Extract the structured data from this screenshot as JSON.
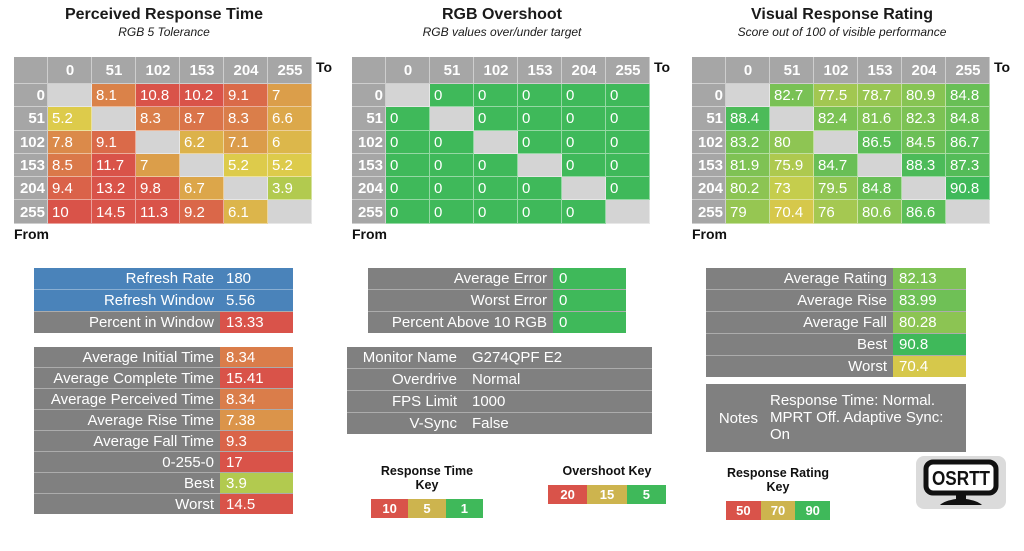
{
  "chart_data": [
    {
      "type": "heatmap",
      "title": "Perceived Response Time",
      "subtitle": "RGB 5 Tolerance",
      "x_axis_label": "To",
      "y_axis_label": "From",
      "x_labels": [
        "0",
        "51",
        "102",
        "153",
        "204",
        "255"
      ],
      "y_labels": [
        "0",
        "51",
        "102",
        "153",
        "204",
        "255"
      ],
      "matrix": [
        [
          null,
          8.1,
          10.8,
          10.2,
          9.1,
          7
        ],
        [
          5.2,
          null,
          8.3,
          8.7,
          8.3,
          6.6
        ],
        [
          7.8,
          9.1,
          null,
          6.2,
          7.1,
          6
        ],
        [
          8.5,
          11.7,
          7,
          null,
          5.2,
          5.2
        ],
        [
          9.4,
          13.2,
          9.8,
          6.7,
          null,
          3.9
        ],
        [
          10,
          14.5,
          11.3,
          9.2,
          6.1,
          null
        ]
      ],
      "cell_colors": [
        [
          "",
          "#DA8249",
          "#D95349",
          "#D95349",
          "#DA6A49",
          "#DB9E4A"
        ],
        [
          "#DDCB4B",
          "",
          "#DA7E4A",
          "#DA744A",
          "#DA7E4A",
          "#DCA84A"
        ],
        [
          "#DB8A4A",
          "#DA6A49",
          "",
          "#DCB24B",
          "#DB9C4A",
          "#DCB74B"
        ],
        [
          "#DA7949",
          "#D95349",
          "#DB9E4A",
          "",
          "#DDCB4B",
          "#DDCB4B"
        ],
        [
          "#DA6249",
          "#D95349",
          "#D95849",
          "#DCA64A",
          "",
          "#B2CA4F"
        ],
        [
          "#D95349",
          "#D95349",
          "#D95349",
          "#DA6749",
          "#DCB54B",
          ""
        ]
      ]
    },
    {
      "type": "heatmap",
      "title": "RGB Overshoot",
      "subtitle": "RGB values over/under target",
      "x_axis_label": "To",
      "y_axis_label": "From",
      "x_labels": [
        "0",
        "51",
        "102",
        "153",
        "204",
        "255"
      ],
      "y_labels": [
        "0",
        "51",
        "102",
        "153",
        "204",
        "255"
      ],
      "matrix": [
        [
          null,
          0,
          0,
          0,
          0,
          0
        ],
        [
          0,
          null,
          0,
          0,
          0,
          0
        ],
        [
          0,
          0,
          null,
          0,
          0,
          0
        ],
        [
          0,
          0,
          0,
          null,
          0,
          0
        ],
        [
          0,
          0,
          0,
          0,
          null,
          0
        ],
        [
          0,
          0,
          0,
          0,
          0,
          null
        ]
      ],
      "cell_colors": [
        [
          "",
          "#3FB95A",
          "#3FB95A",
          "#3FB95A",
          "#3FB95A",
          "#3FB95A"
        ],
        [
          "#3FB95A",
          "",
          "#3FB95A",
          "#3FB95A",
          "#3FB95A",
          "#3FB95A"
        ],
        [
          "#3FB95A",
          "#3FB95A",
          "",
          "#3FB95A",
          "#3FB95A",
          "#3FB95A"
        ],
        [
          "#3FB95A",
          "#3FB95A",
          "#3FB95A",
          "",
          "#3FB95A",
          "#3FB95A"
        ],
        [
          "#3FB95A",
          "#3FB95A",
          "#3FB95A",
          "#3FB95A",
          "",
          "#3FB95A"
        ],
        [
          "#3FB95A",
          "#3FB95A",
          "#3FB95A",
          "#3FB95A",
          "#3FB95A",
          ""
        ]
      ]
    },
    {
      "type": "heatmap",
      "title": "Visual Response Rating",
      "subtitle": "Score out of 100 of visible performance",
      "x_axis_label": "To",
      "y_axis_label": "From",
      "x_labels": [
        "0",
        "51",
        "102",
        "153",
        "204",
        "255"
      ],
      "y_labels": [
        "0",
        "51",
        "102",
        "153",
        "204",
        "255"
      ],
      "matrix": [
        [
          null,
          82.7,
          77.5,
          78.7,
          80.9,
          84.8
        ],
        [
          88.4,
          null,
          82.4,
          81.6,
          82.3,
          84.8
        ],
        [
          83.2,
          80,
          null,
          86.5,
          84.5,
          86.7
        ],
        [
          81.9,
          75.9,
          84.7,
          null,
          88.3,
          87.3
        ],
        [
          80.2,
          73,
          79.5,
          84.8,
          null,
          90.8
        ],
        [
          79,
          70.4,
          76,
          80.6,
          86.6,
          null
        ]
      ],
      "cell_colors": [
        [
          "",
          "#79C155",
          "#A2C751",
          "#98C652",
          "#87C453",
          "#68BF56"
        ],
        [
          "#4CBB59",
          "",
          "#7BC254",
          "#81C354",
          "#7CC254",
          "#68BF56"
        ],
        [
          "#75C155",
          "#8EC553",
          "",
          "#5BBD57",
          "#6BBF56",
          "#59BD58"
        ],
        [
          "#7FC254",
          "#AEC94F",
          "#69BF56",
          "",
          "#4CBB59",
          "#54BC58"
        ],
        [
          "#8CC453",
          "#C5CD4D",
          "#92C552",
          "#68BF56",
          "",
          "#3FB95A"
        ],
        [
          "#96C652",
          "#D6C84B",
          "#A5C851",
          "#89C453",
          "#5ABD57",
          ""
        ]
      ]
    }
  ],
  "stats": {
    "tables": [
      {
        "id": "refresh-info",
        "rows": [
          {
            "label": "Refresh Rate",
            "value": "180",
            "row_bg": "#4A83BA"
          },
          {
            "label": "Refresh Window",
            "value": "5.56",
            "row_bg": "#4A83BA"
          },
          {
            "label": "Percent in Window",
            "value": "13.33",
            "value_bg": "#D9534A"
          }
        ]
      },
      {
        "id": "response-times",
        "rows": [
          {
            "label": "Average Initial Time",
            "value": "8.34",
            "value_bg": "#DA7D4A"
          },
          {
            "label": "Average Complete Time",
            "value": "15.41",
            "value_bg": "#D95349"
          },
          {
            "label": "Average Perceived Time",
            "value": "8.34",
            "value_bg": "#DA7D4A"
          },
          {
            "label": "Average Rise Time",
            "value": "7.38",
            "value_bg": "#DB944A"
          },
          {
            "label": "Average Fall Time",
            "value": "9.3",
            "value_bg": "#DA6449"
          },
          {
            "label": "0-255-0",
            "value": "17",
            "value_bg": "#D95349"
          },
          {
            "label": "Best",
            "value": "3.9",
            "value_bg": "#B2CA4F"
          },
          {
            "label": "Worst",
            "value": "14.5",
            "value_bg": "#D95349"
          }
        ]
      },
      {
        "id": "overshoot-stats",
        "rows": [
          {
            "label": "Average Error",
            "value": "0",
            "value_bg": "#3FB95A"
          },
          {
            "label": "Worst Error",
            "value": "0",
            "value_bg": "#3FB95A"
          },
          {
            "label": "Percent Above 10 RGB",
            "value": "0",
            "value_bg": "#3FB95A"
          }
        ]
      },
      {
        "id": "monitor-info",
        "rows": [
          {
            "label": "Monitor Name",
            "value": "G274QPF E2"
          },
          {
            "label": "Overdrive",
            "value": "Normal"
          },
          {
            "label": "FPS Limit",
            "value": "1000"
          },
          {
            "label": "V-Sync",
            "value": "False"
          }
        ]
      },
      {
        "id": "rating-stats",
        "rows": [
          {
            "label": "Average Rating",
            "value": "82.13",
            "value_bg": "#7DC254"
          },
          {
            "label": "Average Rise",
            "value": "83.99",
            "value_bg": "#6FC056"
          },
          {
            "label": "Average Fall",
            "value": "80.28",
            "value_bg": "#8CC453"
          },
          {
            "label": "Best",
            "value": "90.8",
            "value_bg": "#3FB95A"
          },
          {
            "label": "Worst",
            "value": "70.4",
            "value_bg": "#D6C84B"
          }
        ]
      },
      {
        "id": "notes",
        "rows": [
          {
            "label": "Notes",
            "value": "Response Time: Normal.\nMPRT Off. Adaptive Sync:\nOn"
          }
        ]
      }
    ]
  },
  "keys": [
    {
      "title": "Response Time Key",
      "cells": [
        {
          "value": "10",
          "color": "#D9534A"
        },
        {
          "value": "5",
          "color": "#CDB44E"
        },
        {
          "value": "1",
          "color": "#3FB95A"
        }
      ]
    },
    {
      "title": "Overshoot Key",
      "cells": [
        {
          "value": "20",
          "color": "#D9534A"
        },
        {
          "value": "15",
          "color": "#CDB44E"
        },
        {
          "value": "5",
          "color": "#3FB95A"
        }
      ]
    },
    {
      "title": "Response Rating Key",
      "cells": [
        {
          "value": "50",
          "color": "#D9534A"
        },
        {
          "value": "70",
          "color": "#CDB44E"
        },
        {
          "value": "90",
          "color": "#3FB95A"
        }
      ]
    }
  ],
  "logo": {
    "text": "OSRTT"
  },
  "colors": {
    "header_gray": "#A6A6A6",
    "blank_gray": "#D4D4D4",
    "stats_gray": "#808080",
    "blue": "#4A83BA",
    "red": "#D9534A",
    "yellow": "#DDCB4B",
    "green": "#3FB95A"
  }
}
